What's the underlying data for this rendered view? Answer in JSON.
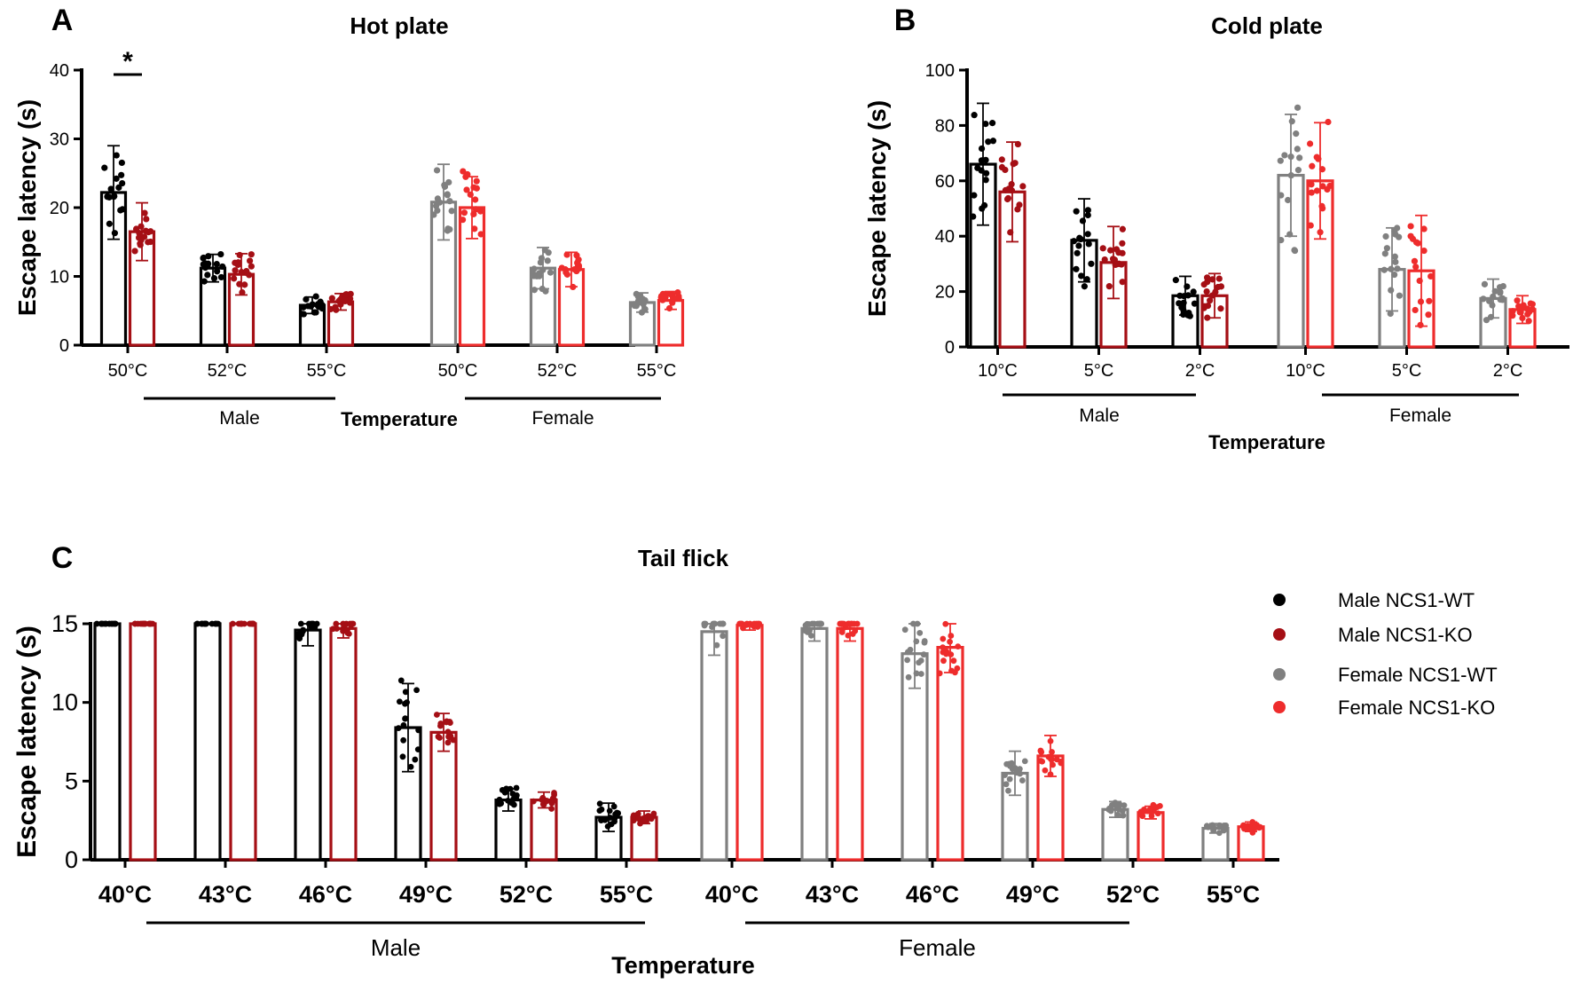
{
  "colors": {
    "male_wt": "#000000",
    "male_ko": "#a50f15",
    "female_wt": "#808080",
    "female_ko": "#ee2c2c"
  },
  "legend": {
    "entries": [
      {
        "key": "male_wt",
        "label": "Male NCS1-WT"
      },
      {
        "key": "male_ko",
        "label": "Male NCS1-KO"
      },
      {
        "key": "female_wt",
        "label": "Female NCS1-WT"
      },
      {
        "key": "female_ko",
        "label": "Female NCS1-KO"
      }
    ]
  },
  "chart_data": [
    {
      "id": "A",
      "type": "bar",
      "panel_label": "A",
      "title": "Hot plate",
      "ylabel": "Escape latency (s)",
      "xlabel": "Temperature",
      "ylim": [
        0,
        40
      ],
      "yticks": [
        0,
        10,
        20,
        30,
        40
      ],
      "groups": [
        {
          "name": "Male",
          "categories": [
            "50°C",
            "52°C",
            "55°C"
          ],
          "series": [
            {
              "key": "male_wt",
              "name": "Male NCS1-WT",
              "values": [
                22.2,
                11.2,
                5.8
              ],
              "sd": [
                6.8,
                2.0,
                1.2
              ]
            },
            {
              "key": "male_ko",
              "name": "Male NCS1-KO",
              "values": [
                16.5,
                10.3,
                6.3
              ],
              "sd": [
                4.2,
                3.0,
                1.2
              ]
            }
          ]
        },
        {
          "name": "Female",
          "categories": [
            "50°C",
            "52°C",
            "55°C"
          ],
          "series": [
            {
              "key": "female_wt",
              "name": "Female NCS1-WT",
              "values": [
                20.8,
                11.2,
                6.2
              ],
              "sd": [
                5.5,
                3.0,
                1.4
              ]
            },
            {
              "key": "female_ko",
              "name": "Female NCS1-KO",
              "values": [
                20.0,
                11.0,
                6.5
              ],
              "sd": [
                4.5,
                2.5,
                1.3
              ]
            }
          ]
        }
      ],
      "annotation": {
        "text": "*",
        "category": "50°C",
        "group": "Male"
      }
    },
    {
      "id": "B",
      "type": "bar",
      "panel_label": "B",
      "title": "Cold plate",
      "ylabel": "Escape latency (s)",
      "xlabel": "Temperature",
      "ylim": [
        0,
        100
      ],
      "yticks": [
        0,
        20,
        40,
        60,
        80,
        100
      ],
      "groups": [
        {
          "name": "Male",
          "categories": [
            "10°C",
            "5°C",
            "2°C"
          ],
          "series": [
            {
              "key": "male_wt",
              "name": "Male NCS1-WT",
              "values": [
                66,
                38.5,
                18.5
              ],
              "sd": [
                22,
                15,
                7
              ]
            },
            {
              "key": "male_ko",
              "name": "Male NCS1-KO",
              "values": [
                56,
                30.5,
                18.5
              ],
              "sd": [
                18,
                13,
                8
              ]
            }
          ]
        },
        {
          "name": "Female",
          "categories": [
            "10°C",
            "5°C",
            "2°C"
          ],
          "series": [
            {
              "key": "female_wt",
              "name": "Female NCS1-WT",
              "values": [
                62,
                28,
                17.5
              ],
              "sd": [
                22,
                15,
                7
              ]
            },
            {
              "key": "female_ko",
              "name": "Female NCS1-KO",
              "values": [
                60,
                27.5,
                13.5
              ],
              "sd": [
                21,
                20,
                5
              ]
            }
          ]
        }
      ]
    },
    {
      "id": "C",
      "type": "bar",
      "panel_label": "C",
      "title": "Tail flick",
      "ylabel": "Escape latency (s)",
      "xlabel": "Temperature",
      "ylim": [
        0,
        15
      ],
      "yticks": [
        0,
        5,
        10,
        15
      ],
      "groups": [
        {
          "name": "Male",
          "categories": [
            "40°C",
            "43°C",
            "46°C",
            "49°C",
            "52°C",
            "55°C"
          ],
          "series": [
            {
              "key": "male_wt",
              "name": "Male NCS1-WT",
              "values": [
                15,
                15,
                14.6,
                8.4,
                3.8,
                2.7
              ],
              "sd": [
                0,
                0,
                1.0,
                2.8,
                0.7,
                0.9
              ]
            },
            {
              "key": "male_ko",
              "name": "Male NCS1-KO",
              "values": [
                15,
                15,
                14.7,
                8.1,
                3.8,
                2.7
              ],
              "sd": [
                0,
                0,
                0.6,
                1.2,
                0.5,
                0.4
              ]
            }
          ]
        },
        {
          "name": "Female",
          "categories": [
            "40°C",
            "43°C",
            "46°C",
            "49°C",
            "52°C",
            "55°C"
          ],
          "series": [
            {
              "key": "female_wt",
              "name": "Female NCS1-WT",
              "values": [
                14.5,
                14.7,
                13.1,
                5.5,
                3.2,
                2.0
              ],
              "sd": [
                1.5,
                0.8,
                2.2,
                1.4,
                0.5,
                0.3
              ]
            },
            {
              "key": "female_ko",
              "name": "Female NCS1-KO",
              "values": [
                14.9,
                14.7,
                13.5,
                6.6,
                3.0,
                2.1
              ],
              "sd": [
                0.3,
                0.8,
                1.6,
                1.3,
                0.4,
                0.3
              ]
            }
          ]
        }
      ]
    }
  ]
}
